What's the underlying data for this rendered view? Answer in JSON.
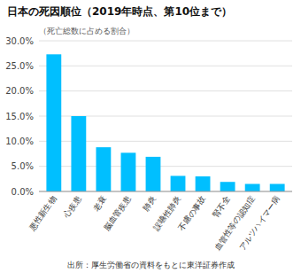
{
  "chart_data": {
    "type": "bar",
    "title": "日本の死因順位（2019年時点、第10位まで）",
    "subtitle": "（死亡総数に占める割合）",
    "annotations": [
      "出所：厚生労働省の資料をもとに東洋証券作成"
    ],
    "categories": [
      "悪性新生物",
      "心疾患",
      "老衰",
      "脳血管疾患",
      "肺炎",
      "誤嚥性肺炎",
      "不慮の事故",
      "腎不全",
      "血管性等の認知症",
      "アルツハイマー病"
    ],
    "values": [
      27.3,
      15.0,
      8.8,
      7.7,
      6.9,
      3.1,
      3.0,
      1.9,
      1.5,
      1.5
    ],
    "color": "#00BFFF",
    "ylim": [
      0,
      30.0
    ],
    "yticks": [
      {
        "value": 0.0,
        "label": "0.0%"
      },
      {
        "value": 5.0,
        "label": "5.0%"
      },
      {
        "value": 10.0,
        "label": "10.0%"
      },
      {
        "value": 15.0,
        "label": "15.0%"
      },
      {
        "value": 20.0,
        "label": "20.0%"
      },
      {
        "value": 25.0,
        "label": "25.0%"
      },
      {
        "value": 30.0,
        "label": "30.0%"
      }
    ],
    "grid": true
  }
}
